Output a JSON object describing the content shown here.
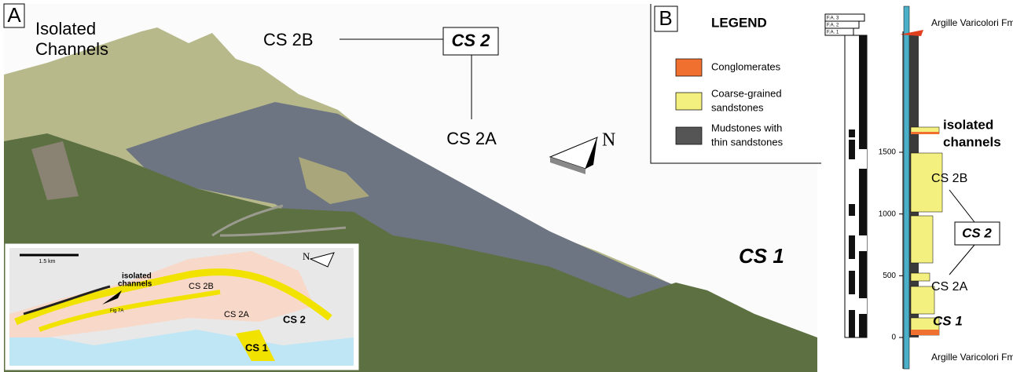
{
  "panel_a": {
    "label": "A",
    "isolated_channels": [
      "Isolated",
      "Channels"
    ],
    "cs2b": "CS 2B",
    "cs2": "CS 2",
    "cs2a": "CS 2A",
    "north": "N",
    "cs1": "CS 1",
    "inset": {
      "scale": "1.5 km",
      "north": "N",
      "isolated_channels": [
        "isolated",
        "channels"
      ],
      "fig": "Fig 7A",
      "cs2b": "CS 2B",
      "cs2a": "CS 2A",
      "cs2": "CS 2",
      "cs1": "CS 1"
    }
  },
  "panel_b": {
    "label": "B",
    "legend": {
      "title": "LEGEND",
      "items": [
        {
          "label": [
            "Conglomerates"
          ],
          "color": "#f07030"
        },
        {
          "label": [
            "Coarse-grained",
            "sandstones"
          ],
          "color": "#f4f080"
        },
        {
          "label": [
            "Mudstones with",
            "thin sandstones"
          ],
          "color": "#555555"
        }
      ]
    },
    "facies": [
      "F.A. 3",
      "F.A. 2",
      "F.A. 1"
    ],
    "log": {
      "top_unit": "Argille Varicolori Fm",
      "bottom_unit": "Argille Varicolori Fm",
      "yticks": [
        0,
        500,
        1000,
        1500
      ],
      "isolated_channels": [
        "isolated",
        "channels"
      ],
      "cs2b": "CS 2B",
      "cs2": "CS 2",
      "cs2a": "CS 2A",
      "cs1": "CS 1"
    }
  }
}
